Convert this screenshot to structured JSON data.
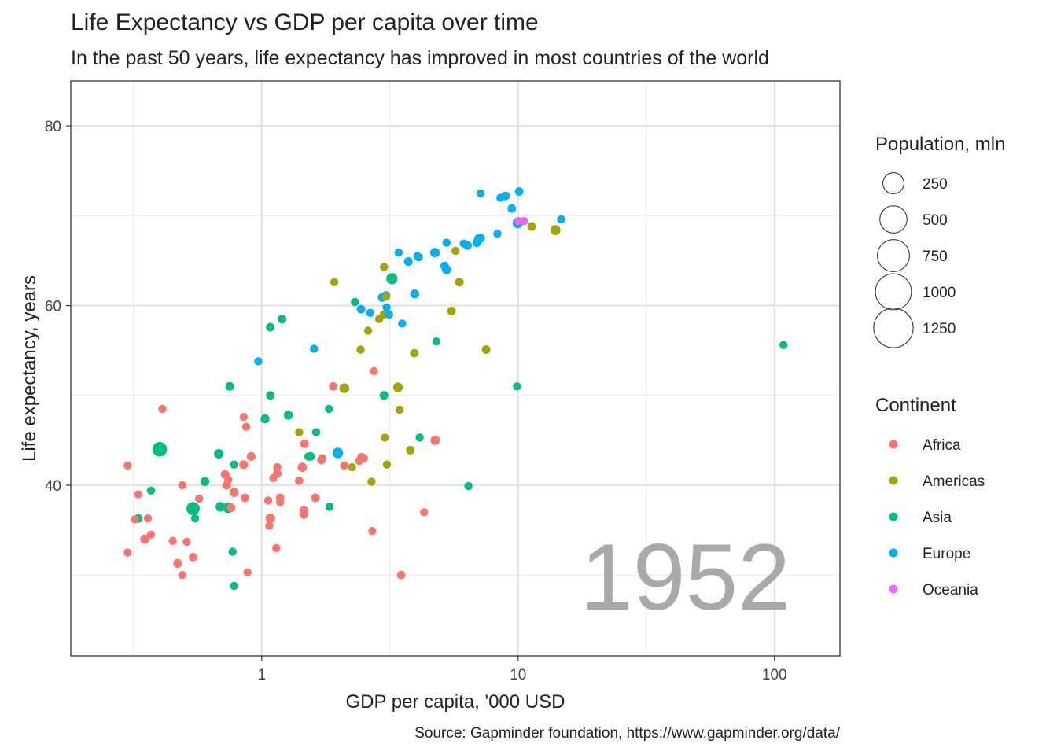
{
  "chart_data": {
    "type": "scatter",
    "title": "Life Expectancy vs GDP per capita over time",
    "subtitle": "In the past 50 years, life expectancy has improved in most countries of the world",
    "xlabel": "GDP per capita, '000 USD",
    "ylabel": "Life expectancy, years",
    "caption": "Source: Gapminder foundation, https://www.gapminder.org/data/",
    "year_label": "1952",
    "x_scale": "log10",
    "xlim": [
      0.18,
      180
    ],
    "ylim": [
      21,
      85
    ],
    "x_ticks": [
      1,
      10,
      100
    ],
    "x_tick_labels": [
      "1",
      "10",
      "100"
    ],
    "y_ticks": [
      40,
      60,
      80
    ],
    "y_tick_labels": [
      "40",
      "60",
      "80"
    ],
    "grid": true,
    "size_legend": {
      "title": "Population, mln",
      "entries": [
        {
          "label": "250",
          "value": 250
        },
        {
          "label": "500",
          "value": 500
        },
        {
          "label": "750",
          "value": 750
        },
        {
          "label": "1000",
          "value": 1000
        },
        {
          "label": "1250",
          "value": 1250
        }
      ]
    },
    "color_legend": {
      "title": "Continent",
      "entries": [
        {
          "label": "Africa",
          "color": "#F8766D"
        },
        {
          "label": "Americas",
          "color": "#A3A500"
        },
        {
          "label": "Asia",
          "color": "#00BF7D"
        },
        {
          "label": "Europe",
          "color": "#00B0F6"
        },
        {
          "label": "Oceania",
          "color": "#E76BF3"
        }
      ]
    },
    "series": [
      {
        "name": "Africa",
        "points": [
          [
            0.3,
            42.2,
            5
          ],
          [
            0.32,
            36.2,
            5
          ],
          [
            0.33,
            39.0,
            5
          ],
          [
            0.35,
            34.0,
            10
          ],
          [
            0.36,
            36.3,
            5
          ],
          [
            0.37,
            34.5,
            5
          ],
          [
            0.3,
            32.5,
            5
          ],
          [
            0.41,
            48.5,
            5
          ],
          [
            0.45,
            33.8,
            5
          ],
          [
            0.47,
            31.3,
            8
          ],
          [
            0.49,
            30.0,
            5
          ],
          [
            0.49,
            40.0,
            5
          ],
          [
            0.51,
            33.7,
            5
          ],
          [
            0.54,
            32.0,
            6
          ],
          [
            0.57,
            38.5,
            5
          ],
          [
            0.72,
            41.2,
            8
          ],
          [
            0.73,
            40.0,
            7
          ],
          [
            0.74,
            40.6,
            5
          ],
          [
            0.76,
            37.5,
            7
          ],
          [
            0.78,
            39.2,
            10
          ],
          [
            0.85,
            47.6,
            5
          ],
          [
            0.85,
            42.3,
            8
          ],
          [
            0.86,
            38.6,
            6
          ],
          [
            0.87,
            46.5,
            5
          ],
          [
            0.88,
            30.3,
            5
          ],
          [
            0.91,
            43.2,
            8
          ],
          [
            1.06,
            38.3,
            5
          ],
          [
            1.07,
            35.5,
            5
          ],
          [
            1.08,
            36.3,
            14
          ],
          [
            1.11,
            40.8,
            5
          ],
          [
            1.14,
            33.0,
            5
          ],
          [
            1.15,
            41.3,
            6
          ],
          [
            1.15,
            42.0,
            5
          ],
          [
            1.18,
            38.6,
            6
          ],
          [
            1.18,
            38.1,
            5
          ],
          [
            1.4,
            40.5,
            6
          ],
          [
            1.44,
            42.0,
            11
          ],
          [
            1.46,
            37.2,
            6
          ],
          [
            1.46,
            36.7,
            5
          ],
          [
            1.47,
            44.6,
            6
          ],
          [
            1.62,
            38.6,
            7
          ],
          [
            1.71,
            42.8,
            7
          ],
          [
            1.72,
            43.0,
            5
          ],
          [
            1.9,
            51.0,
            6
          ],
          [
            2.1,
            42.2,
            5
          ],
          [
            2.4,
            42.7,
            5
          ],
          [
            2.45,
            43.1,
            8
          ],
          [
            2.5,
            43.0,
            6
          ],
          [
            2.7,
            34.9,
            5
          ],
          [
            2.74,
            52.7,
            5
          ],
          [
            3.5,
            30.0,
            6
          ],
          [
            4.3,
            37.0,
            5
          ],
          [
            4.75,
            45.0,
            12
          ]
        ]
      },
      {
        "name": "Americas",
        "points": [
          [
            1.4,
            45.9,
            5
          ],
          [
            2.1,
            50.8,
            15
          ],
          [
            2.25,
            42.0,
            5
          ],
          [
            1.92,
            62.6,
            5
          ],
          [
            2.43,
            55.1,
            5
          ],
          [
            2.6,
            57.2,
            5
          ],
          [
            2.68,
            40.4,
            5
          ],
          [
            2.87,
            58.5,
            5
          ],
          [
            2.99,
            59.0,
            5
          ],
          [
            3.0,
            64.3,
            5
          ],
          [
            3.05,
            61.0,
            5
          ],
          [
            3.02,
            45.3,
            5
          ],
          [
            3.08,
            42.3,
            5
          ],
          [
            3.4,
            50.9,
            13
          ],
          [
            3.45,
            48.4,
            5
          ],
          [
            3.8,
            43.9,
            7
          ],
          [
            3.94,
            54.7,
            6
          ],
          [
            5.5,
            59.4,
            6
          ],
          [
            5.7,
            66.1,
            5
          ],
          [
            5.9,
            62.6,
            8
          ],
          [
            7.5,
            55.1,
            6
          ],
          [
            11.3,
            68.8,
            7
          ],
          [
            13.99,
            68.4,
            17
          ]
        ]
      },
      {
        "name": "Asia",
        "points": [
          [
            0.33,
            36.3,
            7
          ],
          [
            0.37,
            39.4,
            5
          ],
          [
            0.4,
            44.0,
            81
          ],
          [
            0.54,
            37.4,
            56
          ],
          [
            0.55,
            36.3,
            5
          ],
          [
            0.6,
            40.4,
            9
          ],
          [
            0.68,
            43.5,
            12
          ],
          [
            0.69,
            37.6,
            14
          ],
          [
            0.74,
            37.5,
            23
          ],
          [
            0.75,
            51.0,
            7
          ],
          [
            0.77,
            32.6,
            5
          ],
          [
            0.78,
            28.8,
            5
          ],
          [
            0.78,
            42.3,
            5
          ],
          [
            1.03,
            47.4,
            9
          ],
          [
            1.08,
            50.0,
            6
          ],
          [
            1.08,
            57.6,
            6
          ],
          [
            1.2,
            58.5,
            7
          ],
          [
            1.27,
            47.8,
            9
          ],
          [
            1.52,
            43.2,
            5
          ],
          [
            1.55,
            43.2,
            7
          ],
          [
            1.63,
            45.9,
            5
          ],
          [
            1.83,
            48.5,
            5
          ],
          [
            1.84,
            37.6,
            5
          ],
          [
            2.31,
            60.4,
            5
          ],
          [
            3.0,
            50.0,
            7
          ],
          [
            3.22,
            63.0,
            28
          ],
          [
            4.1,
            65.4,
            5
          ],
          [
            4.13,
            45.3,
            5
          ],
          [
            4.8,
            56.0,
            5
          ],
          [
            6.4,
            39.9,
            5
          ],
          [
            9.9,
            51.0,
            5
          ],
          [
            108.4,
            55.6,
            5
          ]
        ]
      },
      {
        "name": "Europe",
        "points": [
          [
            0.97,
            53.8,
            5
          ],
          [
            1.6,
            55.2,
            5
          ],
          [
            1.98,
            43.6,
            21
          ],
          [
            2.44,
            59.6,
            7
          ],
          [
            2.65,
            59.2,
            5
          ],
          [
            2.95,
            60.9,
            7
          ],
          [
            3.05,
            61.1,
            9
          ],
          [
            3.07,
            59.8,
            5
          ],
          [
            3.14,
            59.0,
            5
          ],
          [
            3.42,
            65.9,
            5
          ],
          [
            3.53,
            58.0,
            5
          ],
          [
            3.73,
            64.9,
            8
          ],
          [
            3.95,
            61.3,
            9
          ],
          [
            4.05,
            65.5,
            5
          ],
          [
            4.74,
            65.9,
            14
          ],
          [
            5.17,
            64.4,
            6
          ],
          [
            5.26,
            64.0,
            10
          ],
          [
            5.26,
            67.0,
            5
          ],
          [
            6.14,
            66.9,
            5
          ],
          [
            6.35,
            66.7,
            7
          ],
          [
            6.9,
            67.0,
            7
          ],
          [
            7.03,
            67.4,
            14
          ],
          [
            7.14,
            67.5,
            8
          ],
          [
            7.14,
            72.5,
            5
          ],
          [
            8.3,
            68.0,
            5
          ],
          [
            8.53,
            72.0,
            5
          ],
          [
            8.94,
            72.2,
            6
          ],
          [
            9.45,
            70.8,
            6
          ],
          [
            9.98,
            69.2,
            22
          ],
          [
            10.1,
            72.7,
            6
          ],
          [
            14.73,
            69.6,
            5
          ]
        ]
      },
      {
        "name": "Oceania",
        "points": [
          [
            10.04,
            69.4,
            5
          ],
          [
            10.56,
            69.4,
            5
          ]
        ]
      }
    ]
  }
}
